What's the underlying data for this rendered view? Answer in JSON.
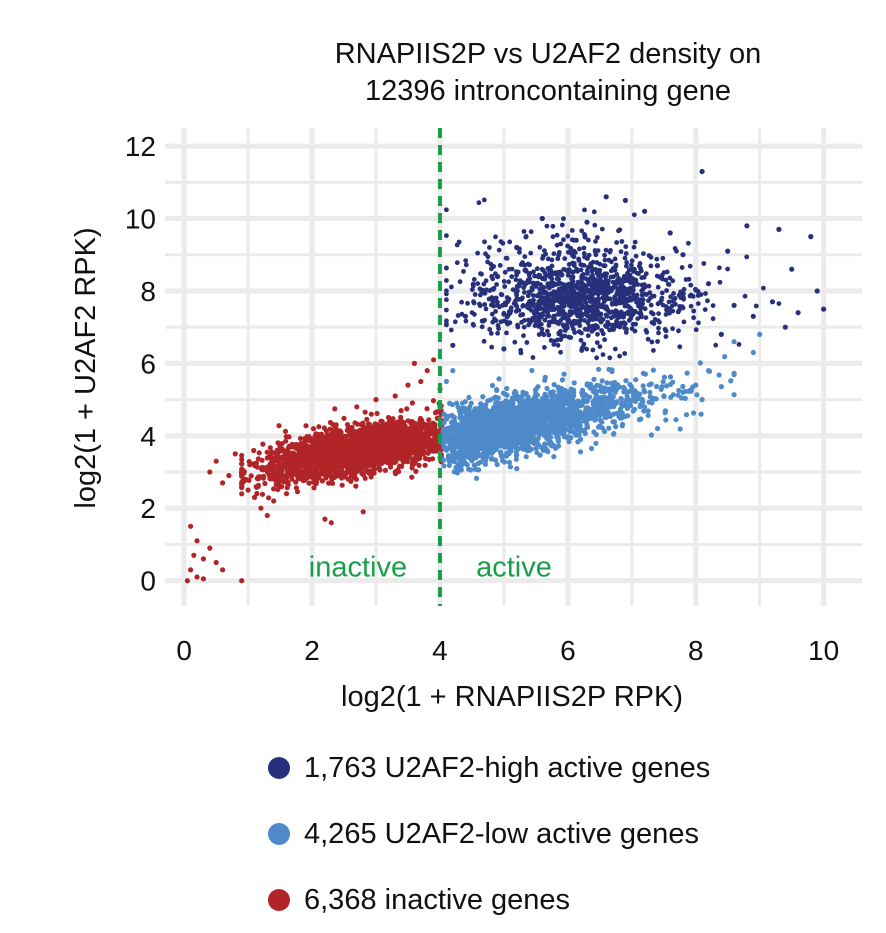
{
  "chart_data": {
    "type": "scatter",
    "title_lines": [
      "RNAPIIS2P vs U2AF2 density on",
      "12396 introncontaining gene"
    ],
    "xlabel": "log2(1 + RNAPIIS2P RPK)",
    "ylabel": "log2(1 + U2AF2 RPK)",
    "xlim": [
      -0.3,
      10.6
    ],
    "ylim": [
      -0.7,
      12.5
    ],
    "x_ticks": [
      "0",
      "2",
      "4",
      "6",
      "8",
      "10"
    ],
    "y_ticks": [
      "0",
      "2",
      "4",
      "6",
      "8",
      "10",
      "12"
    ],
    "grid": true,
    "threshold_x": 4,
    "region_labels": {
      "left": "inactive",
      "right": "active"
    },
    "series": [
      {
        "name": "1,763 U2AF2-high active genes",
        "color": "#27307a",
        "count": 1763,
        "points": [
          [
            8.1,
            11.3
          ],
          [
            6.6,
            10.6
          ],
          [
            6.9,
            10.5
          ],
          [
            7.2,
            10.2
          ],
          [
            5.6,
            10.0
          ],
          [
            6.3,
            9.9
          ],
          [
            7.6,
            9.6
          ],
          [
            8.8,
            9.8
          ],
          [
            9.3,
            9.7
          ],
          [
            9.8,
            9.5
          ],
          [
            8.5,
            9.1
          ],
          [
            9.5,
            8.6
          ],
          [
            9.9,
            8.0
          ],
          [
            10.0,
            7.5
          ],
          [
            9.6,
            7.4
          ],
          [
            9.2,
            7.7
          ],
          [
            9.4,
            7.0
          ],
          [
            8.9,
            7.3
          ],
          [
            5.2,
            9.2
          ],
          [
            4.9,
            8.4
          ],
          [
            4.4,
            7.3
          ],
          [
            4.2,
            6.5
          ],
          [
            7.8,
            9.0
          ],
          [
            7.4,
            8.7
          ],
          [
            8.2,
            8.2
          ],
          [
            8.6,
            7.6
          ],
          [
            8.4,
            6.8
          ],
          [
            5.0,
            6.4
          ]
        ]
      },
      {
        "name": "4,265 U2AF2-low active genes",
        "color": "#4e8ac9",
        "count": 4265,
        "points": [
          [
            8.6,
            6.6
          ],
          [
            8.9,
            6.3
          ],
          [
            9.0,
            6.8
          ],
          [
            8.2,
            5.8
          ],
          [
            8.0,
            5.4
          ],
          [
            7.8,
            5.2
          ],
          [
            8.1,
            5.0
          ],
          [
            7.5,
            5.1
          ],
          [
            4.0,
            3.4
          ],
          [
            4.1,
            3.6
          ],
          [
            4.3,
            3.5
          ],
          [
            4.5,
            3.7
          ],
          [
            4.1,
            5.5
          ],
          [
            4.2,
            5.8
          ],
          [
            4.0,
            4.8
          ],
          [
            5.4,
            3.6
          ],
          [
            6.2,
            3.9
          ],
          [
            7.2,
            4.8
          ],
          [
            4.6,
            3.9
          ],
          [
            5.0,
            4.0
          ]
        ]
      },
      {
        "name": "6,368 inactive genes",
        "color": "#b12528",
        "count": 6368,
        "points": [
          [
            0.05,
            0.0
          ],
          [
            0.1,
            0.3
          ],
          [
            0.2,
            0.1
          ],
          [
            0.3,
            0.6
          ],
          [
            0.4,
            0.9
          ],
          [
            0.5,
            0.5
          ],
          [
            0.6,
            0.3
          ],
          [
            0.1,
            1.5
          ],
          [
            0.9,
            0.0
          ],
          [
            0.2,
            1.1
          ],
          [
            0.3,
            0.05
          ],
          [
            0.15,
            0.7
          ],
          [
            0.6,
            2.7
          ],
          [
            0.4,
            3.0
          ],
          [
            0.5,
            3.3
          ],
          [
            0.7,
            2.9
          ],
          [
            0.8,
            3.5
          ],
          [
            0.9,
            2.6
          ],
          [
            1.0,
            2.5
          ],
          [
            1.1,
            2.3
          ],
          [
            1.2,
            2.0
          ],
          [
            1.3,
            1.8
          ],
          [
            1.4,
            2.2
          ],
          [
            1.5,
            2.6
          ],
          [
            1.6,
            2.4
          ],
          [
            2.2,
            1.7
          ],
          [
            2.3,
            1.6
          ],
          [
            2.8,
            1.9
          ],
          [
            3.3,
            3.0
          ],
          [
            3.6,
            6.0
          ],
          [
            3.8,
            5.8
          ],
          [
            3.7,
            5.5
          ],
          [
            3.3,
            5.1
          ],
          [
            3.0,
            5.0
          ],
          [
            2.7,
            4.8
          ],
          [
            3.9,
            6.1
          ],
          [
            3.5,
            5.4
          ],
          [
            4.0,
            5.3
          ]
        ]
      }
    ]
  }
}
